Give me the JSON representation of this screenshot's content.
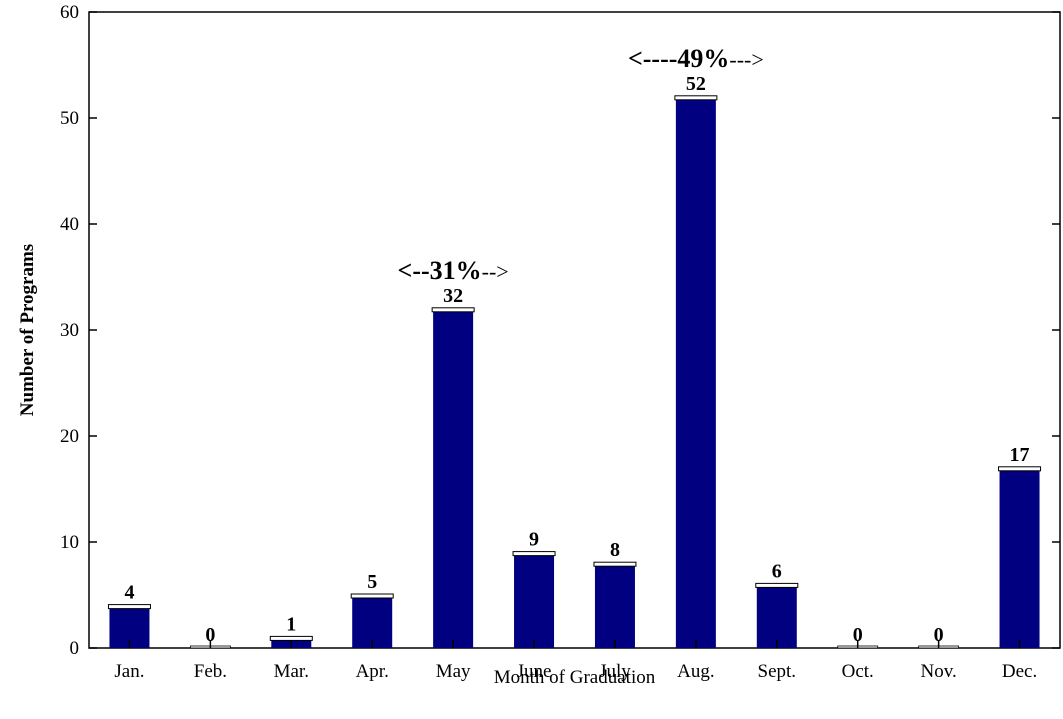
{
  "chart_data": {
    "type": "bar",
    "categories": [
      "Jan.",
      "Feb.",
      "Mar.",
      "Apr.",
      "May",
      "June",
      "July",
      "Aug.",
      "Sept.",
      "Oct.",
      "Nov.",
      "Dec."
    ],
    "values": [
      4,
      0,
      1,
      5,
      32,
      9,
      8,
      52,
      6,
      0,
      0,
      17
    ],
    "data_labels": [
      "4",
      "0",
      "1",
      "5",
      "32",
      "9",
      "8",
      "52",
      "6",
      "0",
      "0",
      "17"
    ],
    "xlabel": "Month of Graduation",
    "ylabel": "Number of Programs",
    "ylim": [
      0,
      60
    ],
    "yticks": [
      "0",
      "10",
      "20",
      "30",
      "40",
      "50",
      "60"
    ],
    "grid": false,
    "bar_color": "#000080",
    "annotations": [
      {
        "target": "May",
        "left": "<--",
        "pct": "31%",
        "right": "-->"
      },
      {
        "target": "Aug.",
        "left": "<----",
        "pct": "49%",
        "right": "--->"
      }
    ]
  }
}
